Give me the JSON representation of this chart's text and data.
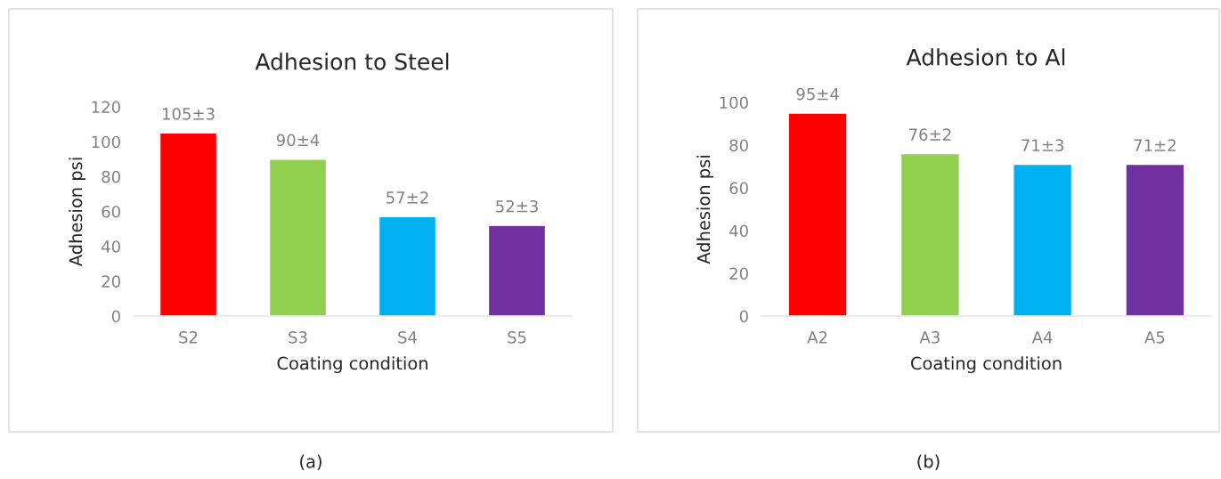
{
  "chart_data": [
    {
      "type": "bar",
      "title": "Adhesion to Steel",
      "xlabel": "Coating condition",
      "ylabel": "Adhesion psi",
      "categories": [
        "S2",
        "S3",
        "S4",
        "S5"
      ],
      "values": [
        105,
        90,
        57,
        52
      ],
      "colors": [
        "#ff0000",
        "#92d050",
        "#00b0f0",
        "#7030a0"
      ],
      "value_labels": [
        "105±3",
        "90±4",
        "57±2",
        "52±3"
      ],
      "ylim": [
        0,
        120
      ],
      "yticks": [
        0,
        20,
        40,
        60,
        80,
        100,
        120
      ],
      "grid": false,
      "legend": false,
      "annotations": [
        "(a)"
      ]
    },
    {
      "type": "bar",
      "title": "Adhesion to Al",
      "xlabel": "Coating condition",
      "ylabel": "Adhesion psi",
      "categories": [
        "A2",
        "A3",
        "A4",
        "A5"
      ],
      "values": [
        95,
        76,
        71,
        71
      ],
      "colors": [
        "#ff0000",
        "#92d050",
        "#00b0f0",
        "#7030a0"
      ],
      "value_labels": [
        "95±4",
        "76±2",
        "71±3",
        "71±2"
      ],
      "ylim": [
        0,
        100
      ],
      "yticks": [
        0,
        20,
        40,
        60,
        80,
        100
      ],
      "grid": false,
      "legend": false,
      "annotations": [
        "(b)"
      ]
    }
  ]
}
